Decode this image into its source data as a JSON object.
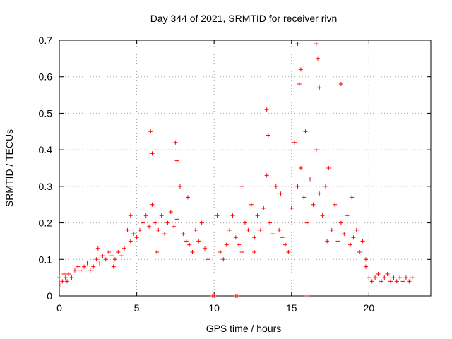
{
  "chart_data": {
    "type": "scatter",
    "title": "Day 344 of 2021, SRMTID for receiver rivn",
    "xlabel": "GPS time / hours",
    "ylabel": "SRMTID / TECUs",
    "xlim": [
      0,
      24
    ],
    "ylim": [
      0,
      0.7
    ],
    "xticks": [
      0,
      5,
      10,
      15,
      20
    ],
    "yticks": [
      0,
      0.1,
      0.2,
      0.3,
      0.4,
      0.5,
      0.6,
      0.7
    ],
    "xtick_labels": [
      "0",
      "5",
      "10",
      "15",
      "20"
    ],
    "ytick_labels": [
      "0",
      "0.1",
      "0.2",
      "0.3",
      "0.4",
      "0.5",
      "0.6",
      "0.7"
    ],
    "grid": true,
    "marker": "+",
    "color": "#ff0000",
    "series": [
      {
        "name": "SRMTID",
        "x": [
          0.0,
          0.2,
          0.4,
          0.6,
          0.8,
          1.0,
          1.2,
          1.4,
          1.6,
          1.8,
          2.0,
          2.2,
          2.4,
          2.6,
          2.8,
          3.0,
          3.2,
          3.4,
          3.6,
          3.8,
          4.0,
          4.2,
          4.4,
          4.6,
          4.8,
          5.0,
          5.2,
          5.4,
          5.6,
          5.8,
          6.0,
          6.2,
          6.4,
          6.6,
          6.8,
          7.0,
          7.2,
          7.4,
          7.6,
          7.8,
          8.0,
          8.2,
          8.4,
          8.6,
          8.8,
          9.0,
          9.2,
          9.4,
          9.6,
          10.0,
          10.2,
          10.4,
          10.6,
          10.8,
          11.0,
          11.2,
          11.4,
          11.6,
          11.8,
          12.0,
          12.2,
          12.4,
          12.6,
          12.8,
          13.0,
          13.2,
          13.4,
          13.6,
          13.8,
          14.0,
          14.2,
          14.4,
          14.6,
          14.8,
          15.0,
          15.2,
          15.4,
          15.6,
          15.8,
          16.0,
          16.2,
          16.4,
          16.6,
          16.8,
          17.0,
          17.2,
          17.4,
          17.6,
          17.8,
          18.0,
          18.2,
          18.4,
          18.6,
          18.8,
          19.0,
          19.2,
          19.4,
          19.6,
          19.8,
          20.0,
          20.2,
          20.4,
          20.6,
          20.8,
          21.0,
          21.2,
          21.4,
          21.6,
          21.8,
          22.0,
          22.2,
          22.4,
          22.6,
          22.8,
          5.9,
          6.0,
          7.5,
          7.6,
          13.4,
          13.5,
          15.4,
          15.5,
          15.6,
          16.6,
          16.7,
          16.8,
          18.2,
          9.9,
          11.4,
          11.5,
          16.0,
          0.1,
          0.3,
          0.5,
          2.5,
          3.5,
          4.6,
          6.3,
          8.3,
          11.8,
          12.6,
          14.3,
          15.9,
          17.3,
          18.9,
          19.8
        ],
        "y": [
          0.05,
          0.04,
          0.05,
          0.06,
          0.05,
          0.07,
          0.08,
          0.07,
          0.08,
          0.09,
          0.07,
          0.08,
          0.1,
          0.09,
          0.11,
          0.1,
          0.12,
          0.11,
          0.1,
          0.12,
          0.11,
          0.13,
          0.18,
          0.15,
          0.17,
          0.16,
          0.18,
          0.2,
          0.22,
          0.19,
          0.25,
          0.2,
          0.18,
          0.22,
          0.17,
          0.2,
          0.23,
          0.19,
          0.21,
          0.3,
          0.17,
          0.15,
          0.14,
          0.12,
          0.18,
          0.15,
          0.2,
          0.13,
          0.1,
          0.0,
          0.22,
          0.12,
          0.1,
          0.14,
          0.18,
          0.22,
          0.16,
          0.14,
          0.12,
          0.2,
          0.18,
          0.25,
          0.16,
          0.22,
          0.18,
          0.24,
          0.33,
          0.2,
          0.17,
          0.3,
          0.18,
          0.16,
          0.14,
          0.12,
          0.24,
          0.42,
          0.3,
          0.35,
          0.27,
          0.2,
          0.32,
          0.25,
          0.4,
          0.28,
          0.22,
          0.3,
          0.35,
          0.18,
          0.25,
          0.15,
          0.2,
          0.17,
          0.22,
          0.14,
          0.16,
          0.18,
          0.12,
          0.15,
          0.1,
          0.05,
          0.04,
          0.05,
          0.06,
          0.04,
          0.05,
          0.06,
          0.04,
          0.05,
          0.04,
          0.05,
          0.04,
          0.05,
          0.04,
          0.05,
          0.45,
          0.39,
          0.42,
          0.37,
          0.51,
          0.44,
          0.69,
          0.58,
          0.62,
          0.69,
          0.65,
          0.57,
          0.58,
          0.0,
          0.0,
          0.0,
          0.0,
          0.03,
          0.06,
          0.04,
          0.13,
          0.08,
          0.22,
          0.12,
          0.27,
          0.3,
          0.12,
          0.28,
          0.45,
          0.15,
          0.27,
          0.08
        ]
      }
    ]
  }
}
